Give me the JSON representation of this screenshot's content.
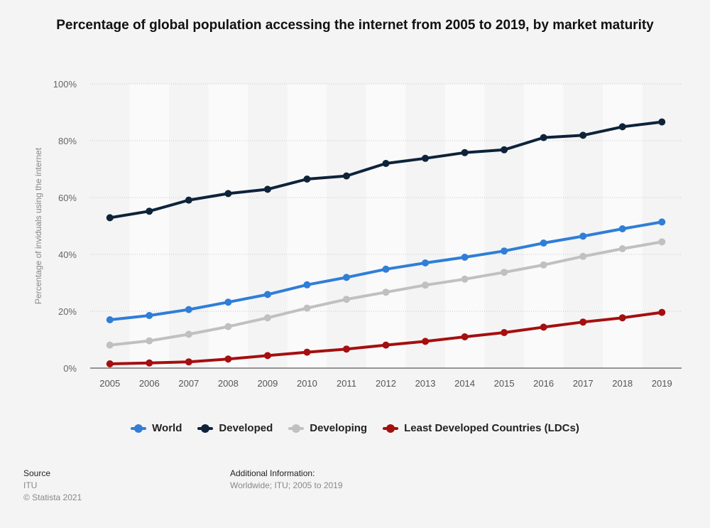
{
  "title": "Percentage of global population accessing the internet from 2005 to 2019, by market maturity",
  "chart_data": {
    "type": "line",
    "title": "Percentage of global population accessing the internet from 2005 to 2019, by market maturity",
    "xlabel": "",
    "ylabel": "Percentage of inviduals using the internet",
    "ylim": [
      0,
      100
    ],
    "yticks": [
      "0%",
      "20%",
      "40%",
      "60%",
      "80%",
      "100%"
    ],
    "categories": [
      "2005",
      "2006",
      "2007",
      "2008",
      "2009",
      "2010",
      "2011",
      "2012",
      "2013",
      "2014",
      "2015",
      "2016",
      "2017",
      "2018",
      "2019"
    ],
    "grid": true,
    "legend_position": "bottom",
    "series": [
      {
        "name": "World",
        "color": "#2f7ed8",
        "values": [
          17,
          18.5,
          20.6,
          23.2,
          25.9,
          29.3,
          31.9,
          34.8,
          37.0,
          39.0,
          41.2,
          44.0,
          46.4,
          49.0,
          51.4
        ]
      },
      {
        "name": "Developed",
        "color": "#0d233a",
        "values": [
          52.9,
          55.2,
          59.1,
          61.4,
          62.9,
          66.5,
          67.6,
          72.0,
          73.8,
          75.8,
          76.8,
          81.1,
          81.9,
          84.9,
          86.6
        ]
      },
      {
        "name": "Developing",
        "color": "#c0c0c0",
        "values": [
          8.1,
          9.6,
          11.9,
          14.6,
          17.7,
          21.1,
          24.2,
          26.7,
          29.2,
          31.3,
          33.7,
          36.3,
          39.3,
          42.0,
          44.4
        ]
      },
      {
        "name": "Least Developed Countries (LDCs)",
        "color": "#a50f0f",
        "values": [
          1.5,
          1.8,
          2.2,
          3.2,
          4.4,
          5.6,
          6.7,
          8.1,
          9.4,
          11.0,
          12.5,
          14.4,
          16.2,
          17.7,
          19.6
        ]
      }
    ]
  },
  "footer": {
    "source_label": "Source",
    "source_value": "ITU",
    "copyright": "© Statista 2021",
    "info_label": "Additional Information:",
    "info_value": "Worldwide; ITU; 2005 to 2019"
  }
}
